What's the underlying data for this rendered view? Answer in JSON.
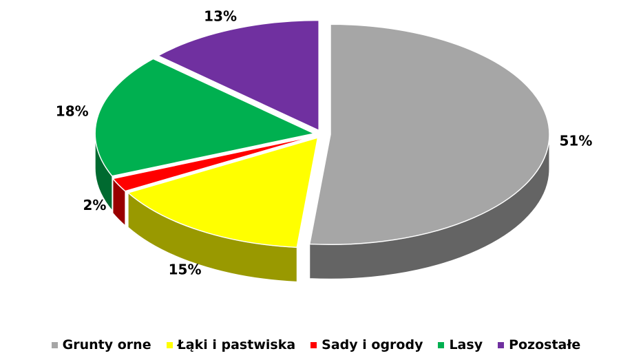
{
  "chart_data": {
    "type": "pie",
    "categories": [
      "Grunty orne",
      "Łąki i pastwiska",
      "Sady i ogrody",
      "Lasy",
      "Pozostałe"
    ],
    "values": [
      51,
      15,
      2,
      18,
      13
    ],
    "value_labels": [
      "51%",
      "15%",
      "2%",
      "18%",
      "13%"
    ],
    "colors": [
      "#a6a6a6",
      "#ffff00",
      "#ff0000",
      "#00b050",
      "#7030a0"
    ],
    "legend": "bottom"
  }
}
